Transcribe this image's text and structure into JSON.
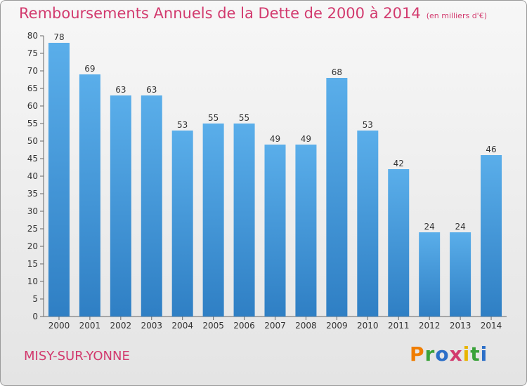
{
  "header": {
    "title": "Remboursements Annuels de la Dette de 2000 à 2014",
    "unit": "(en milliers d'€)"
  },
  "footer": {
    "commune": "MISY-SUR-YONNE",
    "brand": "Proxiti"
  },
  "colors": {
    "bar": "#4f9ee0",
    "title": "#d23a6e"
  },
  "chart_data": {
    "type": "bar",
    "title": "Remboursements Annuels de la Dette de 2000 à 2014",
    "xlabel": "",
    "ylabel": "",
    "categories": [
      "2000",
      "2001",
      "2002",
      "2003",
      "2004",
      "2005",
      "2006",
      "2007",
      "2008",
      "2009",
      "2010",
      "2011",
      "2012",
      "2013",
      "2014"
    ],
    "values": [
      78,
      69,
      63,
      63,
      53,
      55,
      55,
      49,
      49,
      68,
      53,
      42,
      24,
      24,
      46
    ],
    "ylim": [
      0,
      80
    ],
    "yticks": [
      0,
      5,
      10,
      15,
      20,
      25,
      30,
      35,
      40,
      45,
      50,
      55,
      60,
      65,
      70,
      75,
      80
    ],
    "grid": false,
    "legend": "none"
  }
}
